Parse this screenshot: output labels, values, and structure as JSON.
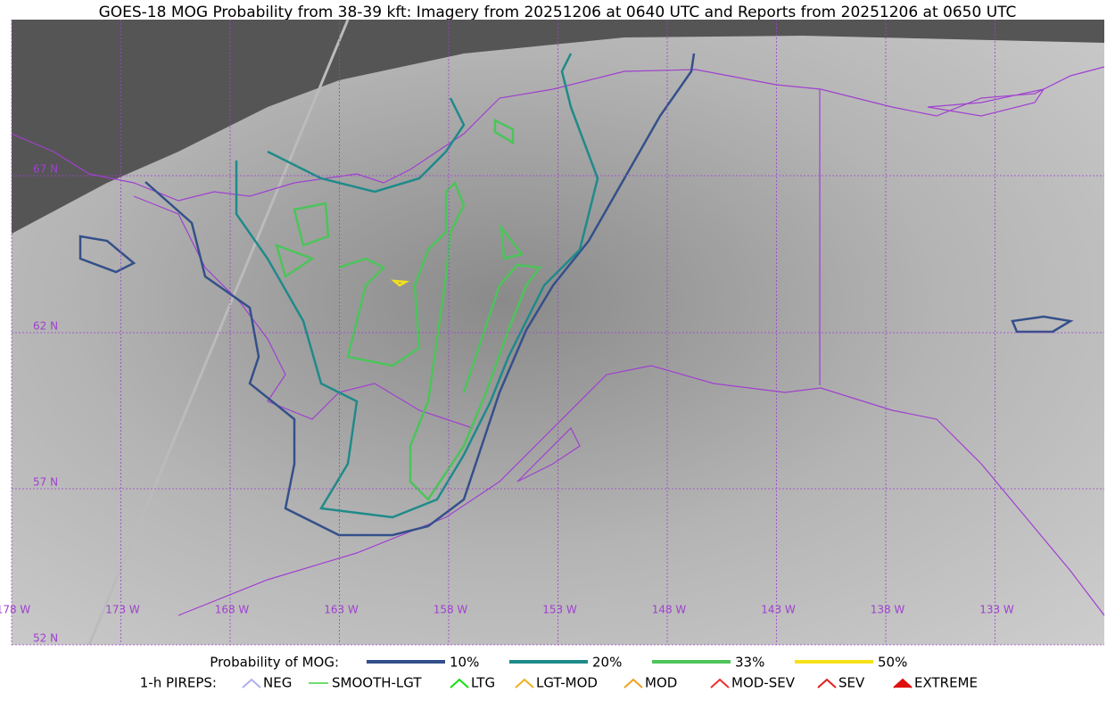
{
  "header": {
    "title": "GOES-18 MOG Probability from 38-39 kft: Imagery from 20251206 at 0640 UTC and Reports from 20251206 at 0650 UTC"
  },
  "map": {
    "lat_labels": [
      "67 N",
      "62 N",
      "57 N",
      "52 N"
    ],
    "lon_labels": [
      "178 W",
      "173 W",
      "168 W",
      "163 W",
      "158 W",
      "153 W",
      "148 W",
      "143 W",
      "138 W",
      "133 W"
    ],
    "grid_color": "#a040d0"
  },
  "legend": {
    "label": "Probability of MOG:",
    "items": [
      {
        "label": "10%",
        "color": "#34508a"
      },
      {
        "label": "20%",
        "color": "#1f8a8a"
      },
      {
        "label": "33%",
        "color": "#4cc45a"
      },
      {
        "label": "50%",
        "color": "#f5e11a"
      }
    ]
  },
  "pireps": {
    "label": "1-h PIREPS:",
    "items": [
      {
        "label": "NEG",
        "color": "#b0b0f0"
      },
      {
        "label": "SMOOTH-LGT",
        "color": "#40d040"
      },
      {
        "label": "LTG",
        "color": "#10e010"
      },
      {
        "label": "LGT-MOD",
        "color": "#f0b020"
      },
      {
        "label": "MOD",
        "color": "#f0a020"
      },
      {
        "label": "MOD-SEV",
        "color": "#f03030"
      },
      {
        "label": "SEV",
        "color": "#e02020"
      },
      {
        "label": "EXTREME",
        "color": "#e01010"
      }
    ]
  }
}
